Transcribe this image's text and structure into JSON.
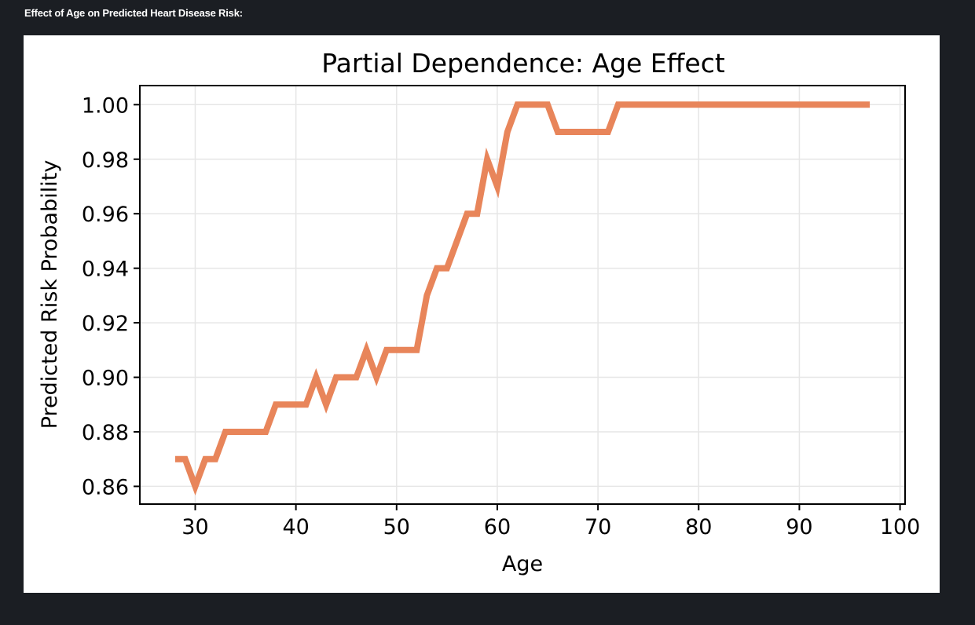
{
  "header": {
    "heading": "Effect of Age on Predicted Heart Disease Risk:"
  },
  "chart_data": {
    "type": "line",
    "title": "Partial Dependence: Age Effect",
    "xlabel": "Age",
    "ylabel": "Predicted Risk Probability",
    "xlim": [
      24.5,
      100.5
    ],
    "ylim": [
      0.8535,
      1.007
    ],
    "xticks": [
      30,
      40,
      50,
      60,
      70,
      80,
      90,
      100
    ],
    "yticks": [
      0.86,
      0.88,
      0.9,
      0.92,
      0.94,
      0.96,
      0.98,
      1.0
    ],
    "xtick_labels": [
      "30",
      "40",
      "50",
      "60",
      "70",
      "80",
      "90",
      "100"
    ],
    "ytick_labels": [
      "0.86",
      "0.88",
      "0.90",
      "0.92",
      "0.94",
      "0.96",
      "0.98",
      "1.00"
    ],
    "grid": true,
    "line_color": "#e8855a",
    "series": [
      {
        "x": [
          28,
          29,
          30,
          31,
          32,
          33,
          34,
          35,
          36,
          37,
          38,
          39,
          40,
          41,
          42,
          43,
          44,
          45,
          46,
          47,
          48,
          49,
          50,
          51,
          52,
          53,
          54,
          55,
          56,
          57,
          58,
          59,
          60,
          61,
          62,
          63,
          64,
          65,
          66,
          67,
          68,
          69,
          70,
          71,
          72,
          73,
          74,
          75,
          76,
          77,
          80,
          85,
          90,
          95,
          97
        ],
        "y": [
          0.87,
          0.87,
          0.86,
          0.87,
          0.87,
          0.88,
          0.88,
          0.88,
          0.88,
          0.88,
          0.89,
          0.89,
          0.89,
          0.89,
          0.9,
          0.89,
          0.9,
          0.9,
          0.9,
          0.91,
          0.9,
          0.91,
          0.91,
          0.91,
          0.91,
          0.93,
          0.94,
          0.94,
          0.95,
          0.96,
          0.96,
          0.98,
          0.97,
          0.99,
          1.0,
          1.0,
          1.0,
          1.0,
          0.99,
          0.99,
          0.99,
          0.99,
          0.99,
          0.99,
          1.0,
          1.0,
          1.0,
          1.0,
          1.0,
          1.0,
          1.0,
          1.0,
          1.0,
          1.0,
          1.0
        ]
      }
    ]
  }
}
